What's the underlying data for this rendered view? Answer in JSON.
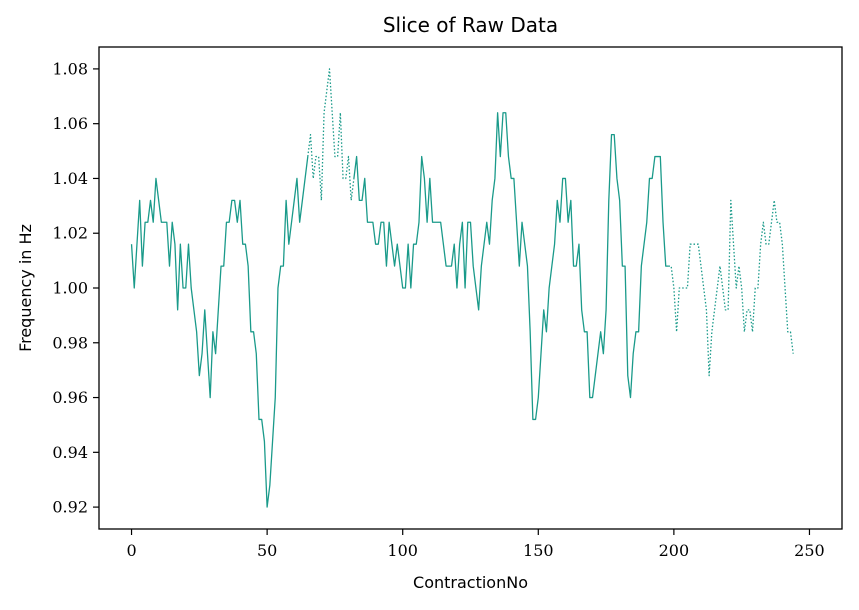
{
  "chart_data": {
    "type": "line",
    "title": "Slice of Raw Data",
    "xlabel": "ContractionNo",
    "ylabel": "Frequency in Hz",
    "xlim": [
      -12,
      262
    ],
    "ylim": [
      0.912,
      1.088
    ],
    "xticks": [
      0,
      50,
      100,
      150,
      200,
      250
    ],
    "xtick_labels": [
      "0",
      "50",
      "100",
      "150",
      "200",
      "250"
    ],
    "yticks": [
      0.92,
      0.94,
      0.96,
      0.98,
      1.0,
      1.02,
      1.04,
      1.06,
      1.08
    ],
    "ytick_labels": [
      "0.92",
      "0.94",
      "0.96",
      "0.98",
      "1.00",
      "1.02",
      "1.04",
      "1.06",
      "1.08"
    ],
    "grid": false,
    "line_color": "#1a9a8a",
    "series": [
      {
        "style": "solid",
        "points": [
          [
            0,
            1.016
          ],
          [
            1,
            1.0
          ],
          [
            2,
            1.016
          ],
          [
            3,
            1.032
          ],
          [
            4,
            1.008
          ],
          [
            5,
            1.024
          ],
          [
            6,
            1.024
          ],
          [
            7,
            1.032
          ],
          [
            8,
            1.024
          ],
          [
            9,
            1.04
          ],
          [
            10,
            1.032
          ],
          [
            11,
            1.024
          ],
          [
            12,
            1.024
          ],
          [
            13,
            1.024
          ],
          [
            14,
            1.008
          ],
          [
            15,
            1.024
          ],
          [
            16,
            1.016
          ],
          [
            17,
            0.992
          ],
          [
            18,
            1.016
          ],
          [
            19,
            1.0
          ],
          [
            20,
            1.0
          ],
          [
            21,
            1.016
          ],
          [
            22,
            1.0
          ],
          [
            23,
            0.992
          ],
          [
            24,
            0.984
          ],
          [
            25,
            0.968
          ],
          [
            26,
            0.976
          ],
          [
            27,
            0.992
          ],
          [
            28,
            0.976
          ],
          [
            29,
            0.96
          ],
          [
            30,
            0.984
          ],
          [
            31,
            0.976
          ],
          [
            32,
            0.992
          ],
          [
            33,
            1.008
          ],
          [
            34,
            1.008
          ],
          [
            35,
            1.024
          ],
          [
            36,
            1.024
          ],
          [
            37,
            1.032
          ],
          [
            38,
            1.032
          ],
          [
            39,
            1.024
          ],
          [
            40,
            1.032
          ],
          [
            41,
            1.016
          ],
          [
            42,
            1.016
          ],
          [
            43,
            1.008
          ],
          [
            44,
            0.984
          ],
          [
            45,
            0.984
          ],
          [
            46,
            0.976
          ],
          [
            47,
            0.952
          ],
          [
            48,
            0.952
          ],
          [
            49,
            0.944
          ],
          [
            50,
            0.92
          ],
          [
            51,
            0.928
          ],
          [
            52,
            0.944
          ],
          [
            53,
            0.96
          ],
          [
            54,
            1.0
          ],
          [
            55,
            1.008
          ],
          [
            56,
            1.008
          ],
          [
            57,
            1.032
          ],
          [
            58,
            1.016
          ],
          [
            59,
            1.024
          ],
          [
            60,
            1.032
          ],
          [
            61,
            1.04
          ],
          [
            62,
            1.024
          ],
          [
            63,
            1.032
          ],
          [
            64,
            1.04
          ],
          [
            65,
            1.048
          ]
        ]
      },
      {
        "style": "dotted",
        "points": [
          [
            65,
            1.048
          ],
          [
            66,
            1.056
          ],
          [
            67,
            1.04
          ],
          [
            68,
            1.048
          ],
          [
            69,
            1.048
          ],
          [
            70,
            1.032
          ],
          [
            71,
            1.064
          ],
          [
            72,
            1.072
          ],
          [
            73,
            1.08
          ],
          [
            74,
            1.064
          ],
          [
            75,
            1.048
          ],
          [
            76,
            1.048
          ],
          [
            77,
            1.064
          ],
          [
            78,
            1.04
          ],
          [
            79,
            1.04
          ],
          [
            80,
            1.048
          ],
          [
            81,
            1.032
          ],
          [
            82,
            1.04
          ]
        ]
      },
      {
        "style": "solid",
        "points": [
          [
            82,
            1.04
          ],
          [
            83,
            1.048
          ],
          [
            84,
            1.032
          ],
          [
            85,
            1.032
          ],
          [
            86,
            1.04
          ],
          [
            87,
            1.024
          ],
          [
            88,
            1.024
          ],
          [
            89,
            1.024
          ],
          [
            90,
            1.016
          ],
          [
            91,
            1.016
          ],
          [
            92,
            1.024
          ],
          [
            93,
            1.024
          ],
          [
            94,
            1.008
          ],
          [
            95,
            1.024
          ],
          [
            96,
            1.016
          ],
          [
            97,
            1.008
          ],
          [
            98,
            1.016
          ],
          [
            99,
            1.008
          ],
          [
            100,
            1.0
          ],
          [
            101,
            1.0
          ],
          [
            102,
            1.016
          ],
          [
            103,
            1.0
          ],
          [
            104,
            1.016
          ],
          [
            105,
            1.016
          ],
          [
            106,
            1.024
          ],
          [
            107,
            1.048
          ],
          [
            108,
            1.04
          ],
          [
            109,
            1.024
          ],
          [
            110,
            1.04
          ],
          [
            111,
            1.024
          ],
          [
            112,
            1.024
          ],
          [
            113,
            1.024
          ],
          [
            114,
            1.024
          ],
          [
            115,
            1.016
          ],
          [
            116,
            1.008
          ],
          [
            117,
            1.008
          ],
          [
            118,
            1.008
          ],
          [
            119,
            1.016
          ],
          [
            120,
            1.0
          ],
          [
            121,
            1.016
          ],
          [
            122,
            1.024
          ],
          [
            123,
            1.0
          ],
          [
            124,
            1.024
          ],
          [
            125,
            1.024
          ],
          [
            126,
            1.008
          ],
          [
            127,
            1.0
          ],
          [
            128,
            0.992
          ],
          [
            129,
            1.008
          ],
          [
            130,
            1.016
          ],
          [
            131,
            1.024
          ],
          [
            132,
            1.016
          ],
          [
            133,
            1.032
          ],
          [
            134,
            1.04
          ],
          [
            135,
            1.064
          ],
          [
            136,
            1.048
          ],
          [
            137,
            1.064
          ],
          [
            138,
            1.064
          ],
          [
            139,
            1.048
          ],
          [
            140,
            1.04
          ],
          [
            141,
            1.04
          ],
          [
            142,
            1.024
          ],
          [
            143,
            1.008
          ],
          [
            144,
            1.024
          ],
          [
            145,
            1.016
          ],
          [
            146,
            1.008
          ],
          [
            147,
            0.984
          ],
          [
            148,
            0.952
          ],
          [
            149,
            0.952
          ],
          [
            150,
            0.96
          ],
          [
            151,
            0.976
          ],
          [
            152,
            0.992
          ],
          [
            153,
            0.984
          ],
          [
            154,
            1.0
          ],
          [
            155,
            1.008
          ],
          [
            156,
            1.016
          ],
          [
            157,
            1.032
          ],
          [
            158,
            1.024
          ],
          [
            159,
            1.04
          ],
          [
            160,
            1.04
          ],
          [
            161,
            1.024
          ],
          [
            162,
            1.032
          ],
          [
            163,
            1.008
          ],
          [
            164,
            1.008
          ],
          [
            165,
            1.016
          ],
          [
            166,
            0.992
          ],
          [
            167,
            0.984
          ],
          [
            168,
            0.984
          ],
          [
            169,
            0.96
          ],
          [
            170,
            0.96
          ],
          [
            171,
            0.968
          ],
          [
            172,
            0.976
          ],
          [
            173,
            0.984
          ],
          [
            174,
            0.976
          ],
          [
            175,
            0.992
          ],
          [
            176,
            1.032
          ],
          [
            177,
            1.056
          ],
          [
            178,
            1.056
          ],
          [
            179,
            1.04
          ],
          [
            180,
            1.032
          ],
          [
            181,
            1.008
          ],
          [
            182,
            1.008
          ],
          [
            183,
            0.968
          ],
          [
            184,
            0.96
          ],
          [
            185,
            0.976
          ],
          [
            186,
            0.984
          ],
          [
            187,
            0.984
          ],
          [
            188,
            1.008
          ],
          [
            189,
            1.016
          ],
          [
            190,
            1.024
          ],
          [
            191,
            1.04
          ],
          [
            192,
            1.04
          ],
          [
            193,
            1.048
          ],
          [
            194,
            1.048
          ],
          [
            195,
            1.048
          ],
          [
            196,
            1.024
          ],
          [
            197,
            1.008
          ],
          [
            198,
            1.008
          ]
        ]
      },
      {
        "style": "dotted",
        "points": [
          [
            198,
            1.008
          ],
          [
            199,
            1.008
          ],
          [
            200,
            1.0
          ],
          [
            201,
            0.984
          ],
          [
            202,
            1.0
          ],
          [
            203,
            1.0
          ],
          [
            204,
            1.0
          ],
          [
            205,
            1.0
          ],
          [
            206,
            1.016
          ],
          [
            207,
            1.016
          ],
          [
            208,
            1.016
          ],
          [
            209,
            1.016
          ],
          [
            210,
            1.008
          ],
          [
            211,
            1.0
          ],
          [
            212,
            0.992
          ],
          [
            213,
            0.968
          ],
          [
            214,
            0.984
          ],
          [
            215,
            0.992
          ],
          [
            216,
            1.0
          ],
          [
            217,
            1.008
          ],
          [
            218,
            1.0
          ],
          [
            219,
            0.992
          ],
          [
            220,
            0.992
          ],
          [
            221,
            1.032
          ],
          [
            222,
            1.016
          ],
          [
            223,
            1.0
          ],
          [
            224,
            1.008
          ],
          [
            225,
            1.0
          ],
          [
            226,
            0.984
          ],
          [
            227,
            0.992
          ],
          [
            228,
            0.992
          ],
          [
            229,
            0.984
          ],
          [
            230,
            1.0
          ],
          [
            231,
            1.0
          ],
          [
            232,
            1.016
          ],
          [
            233,
            1.024
          ],
          [
            234,
            1.016
          ],
          [
            235,
            1.016
          ],
          [
            236,
            1.024
          ],
          [
            237,
            1.032
          ],
          [
            238,
            1.024
          ],
          [
            239,
            1.024
          ],
          [
            240,
            1.016
          ],
          [
            241,
            1.0
          ],
          [
            242,
            0.984
          ],
          [
            243,
            0.984
          ],
          [
            244,
            0.976
          ]
        ]
      }
    ]
  }
}
